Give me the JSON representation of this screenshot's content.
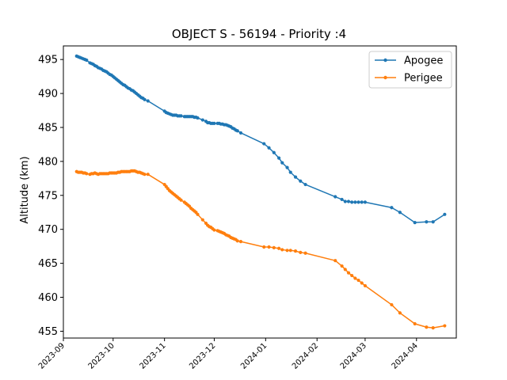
{
  "chart_data": {
    "type": "line",
    "title": "OBJECT S - 56194 - Priority :4",
    "xlabel": "",
    "ylabel": "Altitude (km)",
    "xlim": [
      "2023-09-01",
      "2024-04-25"
    ],
    "ylim": [
      454.0,
      497.0
    ],
    "yticks": [
      455,
      460,
      465,
      470,
      475,
      480,
      485,
      490,
      495
    ],
    "xticks": [
      "2023-09",
      "2023-10",
      "2023-11",
      "2023-12",
      "2024-01",
      "2024-02",
      "2024-03",
      "2024-04"
    ],
    "grid": false,
    "legend_position": "top-right",
    "series": [
      {
        "name": "Apogee",
        "color": "#1f77b4",
        "points": [
          [
            "2023-09-09",
            495.5
          ],
          [
            "2023-09-10",
            495.4
          ],
          [
            "2023-09-11",
            495.3
          ],
          [
            "2023-09-12",
            495.2
          ],
          [
            "2023-09-13",
            495.1
          ],
          [
            "2023-09-14",
            495.0
          ],
          [
            "2023-09-15",
            494.9
          ],
          [
            "2023-09-17",
            494.5
          ],
          [
            "2023-09-18",
            494.4
          ],
          [
            "2023-09-19",
            494.3
          ],
          [
            "2023-09-20",
            494.1
          ],
          [
            "2023-09-21",
            494.0
          ],
          [
            "2023-09-22",
            493.8
          ],
          [
            "2023-09-23",
            493.7
          ],
          [
            "2023-09-24",
            493.6
          ],
          [
            "2023-09-25",
            493.4
          ],
          [
            "2023-09-26",
            493.3
          ],
          [
            "2023-09-27",
            493.2
          ],
          [
            "2023-09-28",
            493.0
          ],
          [
            "2023-09-29",
            492.8
          ],
          [
            "2023-09-30",
            492.7
          ],
          [
            "2023-10-01",
            492.5
          ],
          [
            "2023-10-02",
            492.3
          ],
          [
            "2023-10-03",
            492.1
          ],
          [
            "2023-10-04",
            491.9
          ],
          [
            "2023-10-05",
            491.7
          ],
          [
            "2023-10-06",
            491.5
          ],
          [
            "2023-10-07",
            491.3
          ],
          [
            "2023-10-08",
            491.2
          ],
          [
            "2023-10-09",
            491.0
          ],
          [
            "2023-10-10",
            490.8
          ],
          [
            "2023-10-11",
            490.7
          ],
          [
            "2023-10-12",
            490.5
          ],
          [
            "2023-10-13",
            490.4
          ],
          [
            "2023-10-14",
            490.2
          ],
          [
            "2023-10-15",
            490.0
          ],
          [
            "2023-10-16",
            489.8
          ],
          [
            "2023-10-17",
            489.6
          ],
          [
            "2023-10-18",
            489.4
          ],
          [
            "2023-10-19",
            489.3
          ],
          [
            "2023-10-20",
            489.1
          ],
          [
            "2023-10-22",
            488.9
          ],
          [
            "2023-11-01",
            487.4
          ],
          [
            "2023-11-02",
            487.2
          ],
          [
            "2023-11-03",
            487.1
          ],
          [
            "2023-11-04",
            487.0
          ],
          [
            "2023-11-05",
            486.9
          ],
          [
            "2023-11-06",
            486.8
          ],
          [
            "2023-11-07",
            486.8
          ],
          [
            "2023-11-08",
            486.8
          ],
          [
            "2023-11-09",
            486.7
          ],
          [
            "2023-11-10",
            486.7
          ],
          [
            "2023-11-11",
            486.7
          ],
          [
            "2023-11-13",
            486.6
          ],
          [
            "2023-11-14",
            486.6
          ],
          [
            "2023-11-15",
            486.6
          ],
          [
            "2023-11-16",
            486.6
          ],
          [
            "2023-11-17",
            486.6
          ],
          [
            "2023-11-18",
            486.6
          ],
          [
            "2023-11-19",
            486.5
          ],
          [
            "2023-11-20",
            486.5
          ],
          [
            "2023-11-21",
            486.4
          ],
          [
            "2023-11-24",
            486.1
          ],
          [
            "2023-11-26",
            485.9
          ],
          [
            "2023-11-27",
            485.7
          ],
          [
            "2023-11-28",
            485.7
          ],
          [
            "2023-11-29",
            485.6
          ],
          [
            "2023-11-30",
            485.6
          ],
          [
            "2023-12-01",
            485.6
          ],
          [
            "2023-12-03",
            485.6
          ],
          [
            "2023-12-04",
            485.6
          ],
          [
            "2023-12-05",
            485.5
          ],
          [
            "2023-12-06",
            485.5
          ],
          [
            "2023-12-07",
            485.4
          ],
          [
            "2023-12-08",
            485.4
          ],
          [
            "2023-12-09",
            485.3
          ],
          [
            "2023-12-10",
            485.2
          ],
          [
            "2023-12-11",
            485.1
          ],
          [
            "2023-12-12",
            484.9
          ],
          [
            "2023-12-13",
            484.8
          ],
          [
            "2023-12-14",
            484.6
          ],
          [
            "2023-12-15",
            484.5
          ],
          [
            "2023-12-17",
            484.2
          ],
          [
            "2023-12-31",
            482.6
          ],
          [
            "2024-01-03",
            482.0
          ],
          [
            "2024-01-06",
            481.3
          ],
          [
            "2024-01-09",
            480.5
          ],
          [
            "2024-01-11",
            479.8
          ],
          [
            "2024-01-14",
            479.1
          ],
          [
            "2024-01-16",
            478.4
          ],
          [
            "2024-01-19",
            477.7
          ],
          [
            "2024-01-22",
            477.1
          ],
          [
            "2024-01-25",
            476.6
          ],
          [
            "2024-02-12",
            474.8
          ],
          [
            "2024-02-16",
            474.4
          ],
          [
            "2024-02-18",
            474.1
          ],
          [
            "2024-02-20",
            474.1
          ],
          [
            "2024-02-22",
            474.0
          ],
          [
            "2024-02-24",
            474.0
          ],
          [
            "2024-02-26",
            474.0
          ],
          [
            "2024-02-28",
            474.0
          ],
          [
            "2024-03-01",
            474.0
          ],
          [
            "2024-03-17",
            473.2
          ],
          [
            "2024-03-22",
            472.5
          ],
          [
            "2024-03-31",
            471.0
          ],
          [
            "2024-04-07",
            471.1
          ],
          [
            "2024-04-11",
            471.1
          ],
          [
            "2024-04-18",
            472.2
          ]
        ]
      },
      {
        "name": "Perigee",
        "color": "#ff7f0e",
        "points": [
          [
            "2023-09-09",
            478.5
          ],
          [
            "2023-09-10",
            478.4
          ],
          [
            "2023-09-11",
            478.4
          ],
          [
            "2023-09-12",
            478.4
          ],
          [
            "2023-09-13",
            478.3
          ],
          [
            "2023-09-14",
            478.3
          ],
          [
            "2023-09-15",
            478.2
          ],
          [
            "2023-09-17",
            478.1
          ],
          [
            "2023-09-18",
            478.2
          ],
          [
            "2023-09-19",
            478.2
          ],
          [
            "2023-09-20",
            478.3
          ],
          [
            "2023-09-21",
            478.2
          ],
          [
            "2023-09-22",
            478.1
          ],
          [
            "2023-09-23",
            478.2
          ],
          [
            "2023-09-24",
            478.2
          ],
          [
            "2023-09-25",
            478.2
          ],
          [
            "2023-09-26",
            478.2
          ],
          [
            "2023-09-27",
            478.2
          ],
          [
            "2023-09-28",
            478.2
          ],
          [
            "2023-09-29",
            478.3
          ],
          [
            "2023-09-30",
            478.3
          ],
          [
            "2023-10-01",
            478.3
          ],
          [
            "2023-10-02",
            478.3
          ],
          [
            "2023-10-03",
            478.3
          ],
          [
            "2023-10-04",
            478.4
          ],
          [
            "2023-10-05",
            478.4
          ],
          [
            "2023-10-06",
            478.5
          ],
          [
            "2023-10-07",
            478.5
          ],
          [
            "2023-10-08",
            478.5
          ],
          [
            "2023-10-09",
            478.5
          ],
          [
            "2023-10-10",
            478.5
          ],
          [
            "2023-10-11",
            478.5
          ],
          [
            "2023-10-12",
            478.6
          ],
          [
            "2023-10-13",
            478.6
          ],
          [
            "2023-10-14",
            478.6
          ],
          [
            "2023-10-15",
            478.5
          ],
          [
            "2023-10-16",
            478.4
          ],
          [
            "2023-10-17",
            478.4
          ],
          [
            "2023-10-18",
            478.3
          ],
          [
            "2023-10-19",
            478.2
          ],
          [
            "2023-10-20",
            478.1
          ],
          [
            "2023-10-22",
            478.1
          ],
          [
            "2023-11-01",
            476.6
          ],
          [
            "2023-11-02",
            476.3
          ],
          [
            "2023-11-03",
            476.0
          ],
          [
            "2023-11-04",
            475.7
          ],
          [
            "2023-11-05",
            475.5
          ],
          [
            "2023-11-06",
            475.3
          ],
          [
            "2023-11-07",
            475.1
          ],
          [
            "2023-11-08",
            474.9
          ],
          [
            "2023-11-09",
            474.7
          ],
          [
            "2023-11-10",
            474.5
          ],
          [
            "2023-11-11",
            474.3
          ],
          [
            "2023-11-13",
            474.0
          ],
          [
            "2023-11-14",
            473.8
          ],
          [
            "2023-11-15",
            473.6
          ],
          [
            "2023-11-16",
            473.4
          ],
          [
            "2023-11-17",
            473.1
          ],
          [
            "2023-11-18",
            472.9
          ],
          [
            "2023-11-19",
            472.7
          ],
          [
            "2023-11-20",
            472.5
          ],
          [
            "2023-11-21",
            472.2
          ],
          [
            "2023-11-24",
            471.4
          ],
          [
            "2023-11-26",
            470.9
          ],
          [
            "2023-11-27",
            470.6
          ],
          [
            "2023-11-28",
            470.4
          ],
          [
            "2023-11-29",
            470.3
          ],
          [
            "2023-11-30",
            470.1
          ],
          [
            "2023-12-01",
            469.9
          ],
          [
            "2023-12-03",
            469.8
          ],
          [
            "2023-12-04",
            469.7
          ],
          [
            "2023-12-05",
            469.6
          ],
          [
            "2023-12-06",
            469.5
          ],
          [
            "2023-12-07",
            469.4
          ],
          [
            "2023-12-08",
            469.2
          ],
          [
            "2023-12-09",
            469.1
          ],
          [
            "2023-12-10",
            469.0
          ],
          [
            "2023-12-11",
            468.8
          ],
          [
            "2023-12-12",
            468.7
          ],
          [
            "2023-12-13",
            468.6
          ],
          [
            "2023-12-14",
            468.5
          ],
          [
            "2023-12-15",
            468.3
          ],
          [
            "2023-12-17",
            468.2
          ],
          [
            "2023-12-31",
            467.4
          ],
          [
            "2024-01-03",
            467.4
          ],
          [
            "2024-01-06",
            467.3
          ],
          [
            "2024-01-09",
            467.2
          ],
          [
            "2024-01-11",
            467.0
          ],
          [
            "2024-01-14",
            466.9
          ],
          [
            "2024-01-16",
            466.9
          ],
          [
            "2024-01-19",
            466.8
          ],
          [
            "2024-01-22",
            466.6
          ],
          [
            "2024-01-25",
            466.5
          ],
          [
            "2024-02-12",
            465.4
          ],
          [
            "2024-02-16",
            464.6
          ],
          [
            "2024-02-18",
            464.1
          ],
          [
            "2024-02-20",
            463.6
          ],
          [
            "2024-02-22",
            463.2
          ],
          [
            "2024-02-24",
            462.8
          ],
          [
            "2024-02-26",
            462.5
          ],
          [
            "2024-02-28",
            462.1
          ],
          [
            "2024-03-01",
            461.7
          ],
          [
            "2024-03-17",
            458.9
          ],
          [
            "2024-03-22",
            457.7
          ],
          [
            "2024-03-31",
            456.1
          ],
          [
            "2024-04-07",
            455.6
          ],
          [
            "2024-04-11",
            455.5
          ],
          [
            "2024-04-18",
            455.8
          ]
        ]
      }
    ]
  }
}
